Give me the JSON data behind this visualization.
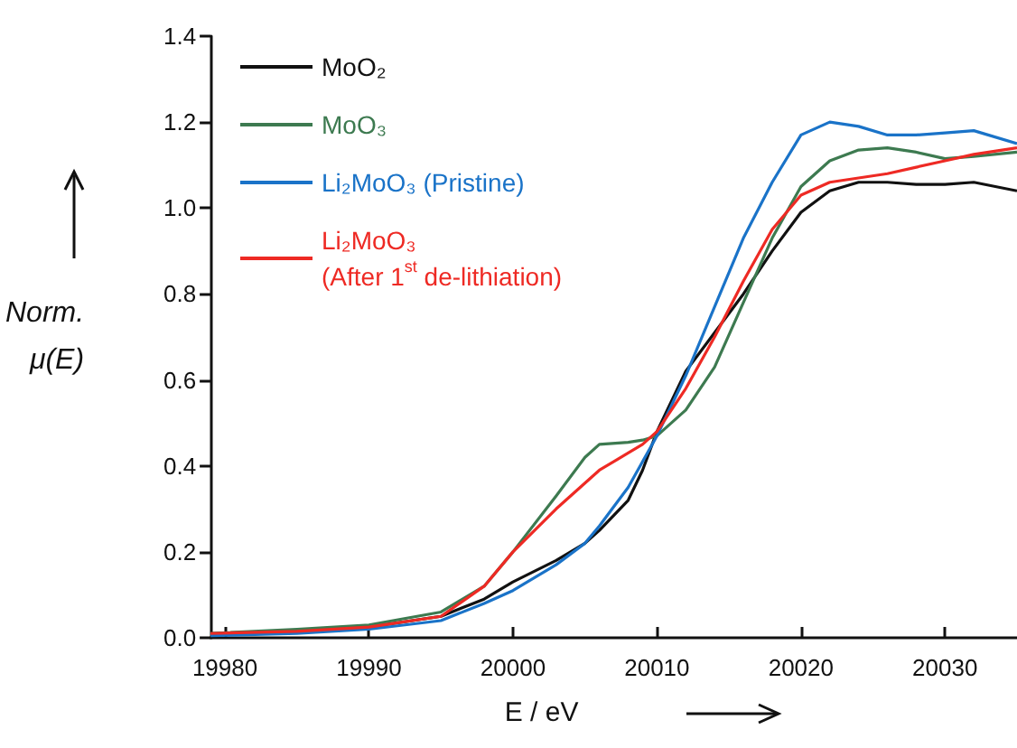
{
  "chart_data": {
    "type": "line",
    "xlabel": "E / eV",
    "ylabel": "Norm. μ(E)",
    "xlim": [
      19979,
      20035
    ],
    "xticks": [
      19980,
      19990,
      20000,
      20010,
      20020,
      20030
    ],
    "ylim": [
      0,
      1.4
    ],
    "yticks": [
      {
        "value": 0,
        "label": "0.0"
      },
      0.2,
      0.4,
      0.6,
      0.8,
      {
        "value": 1,
        "label": "1.0"
      },
      1.2,
      1.4
    ],
    "grid": false,
    "legend": "top left",
    "marker": "none",
    "line_style": "solid",
    "x": [
      19979,
      19985,
      19990,
      19995,
      19998,
      20000,
      20003,
      20005,
      20006,
      20008,
      20009,
      20010,
      20012,
      20014,
      20016,
      20018,
      20020,
      20022,
      20024,
      20026,
      20028,
      20030,
      20032,
      20035
    ],
    "series": [
      {
        "name": "MoO₂",
        "color": "#111111",
        "values": [
          0.01,
          0.015,
          0.025,
          0.05,
          0.09,
          0.13,
          0.18,
          0.22,
          0.25,
          0.32,
          0.39,
          0.48,
          0.62,
          0.71,
          0.8,
          0.9,
          0.99,
          1.04,
          1.06,
          1.06,
          1.055,
          1.055,
          1.06,
          1.04
        ]
      },
      {
        "name": "MoO₃",
        "color": "#3d7a50",
        "values": [
          0.01,
          0.02,
          0.03,
          0.06,
          0.12,
          0.2,
          0.33,
          0.42,
          0.45,
          0.455,
          0.46,
          0.47,
          0.53,
          0.63,
          0.78,
          0.93,
          1.05,
          1.11,
          1.135,
          1.14,
          1.13,
          1.115,
          1.12,
          1.13
        ]
      },
      {
        "name": "Li₂MoO₃ (Pristine)",
        "color": "#1a73c8",
        "values": [
          0.005,
          0.01,
          0.02,
          0.04,
          0.08,
          0.11,
          0.17,
          0.22,
          0.26,
          0.35,
          0.41,
          0.47,
          0.61,
          0.77,
          0.93,
          1.06,
          1.17,
          1.2,
          1.19,
          1.17,
          1.17,
          1.175,
          1.18,
          1.15
        ]
      },
      {
        "name": "Li₂MoO₃\n(After 1$^{st}$ de-lithiation)",
        "color": "#ee2a24",
        "values": [
          0.01,
          0.015,
          0.025,
          0.05,
          0.12,
          0.2,
          0.3,
          0.36,
          0.39,
          0.43,
          0.45,
          0.48,
          0.58,
          0.7,
          0.83,
          0.95,
          1.03,
          1.06,
          1.07,
          1.08,
          1.095,
          1.11,
          1.125,
          1.14
        ]
      }
    ]
  }
}
